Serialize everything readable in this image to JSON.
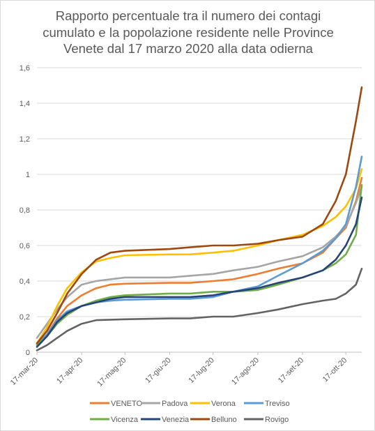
{
  "chart_data": {
    "type": "line",
    "title_lines": [
      "Rapporto percentuale tra il numero dei contagi",
      "cumulato e la popolazione residente nelle  Province",
      "Venete dal 17 marzo 2020 alla data odierna"
    ],
    "y_ticks": [
      "0",
      "0,2",
      "0,4",
      "0,6",
      "0,8",
      "1",
      "1,2",
      "1,4",
      "1,6"
    ],
    "x_ticks": [
      "17-mar-20",
      "17-apr-20",
      "17-mag-20",
      "17-giu-20",
      "17-lug-20",
      "17-ago-20",
      "17-set-20",
      "17-ott-20"
    ],
    "ylim": [
      0,
      1.6
    ],
    "xlim": [
      "2020-03-17",
      "2020-10-28"
    ],
    "grid": true,
    "legend_position": "bottom",
    "series": [
      {
        "name": "VENETO",
        "color": "#ed7d31",
        "points": [
          [
            "2020-03-17",
            0.04
          ],
          [
            "2020-03-24",
            0.1
          ],
          [
            "2020-03-31",
            0.19
          ],
          [
            "2020-04-07",
            0.26
          ],
          [
            "2020-04-17",
            0.32
          ],
          [
            "2020-04-27",
            0.36
          ],
          [
            "2020-05-07",
            0.38
          ],
          [
            "2020-05-17",
            0.385
          ],
          [
            "2020-06-17",
            0.39
          ],
          [
            "2020-07-01",
            0.39
          ],
          [
            "2020-07-17",
            0.4
          ],
          [
            "2020-07-31",
            0.41
          ],
          [
            "2020-08-17",
            0.44
          ],
          [
            "2020-08-31",
            0.47
          ],
          [
            "2020-09-17",
            0.5
          ],
          [
            "2020-10-01",
            0.56
          ],
          [
            "2020-10-10",
            0.64
          ],
          [
            "2020-10-17",
            0.7
          ],
          [
            "2020-10-24",
            0.85
          ],
          [
            "2020-10-28",
            0.98
          ]
        ]
      },
      {
        "name": "Padova",
        "color": "#a5a5a5",
        "points": [
          [
            "2020-03-17",
            0.08
          ],
          [
            "2020-03-24",
            0.16
          ],
          [
            "2020-03-31",
            0.24
          ],
          [
            "2020-04-07",
            0.31
          ],
          [
            "2020-04-17",
            0.38
          ],
          [
            "2020-04-27",
            0.4
          ],
          [
            "2020-05-07",
            0.41
          ],
          [
            "2020-05-17",
            0.42
          ],
          [
            "2020-06-17",
            0.42
          ],
          [
            "2020-07-01",
            0.43
          ],
          [
            "2020-07-17",
            0.44
          ],
          [
            "2020-07-31",
            0.46
          ],
          [
            "2020-08-17",
            0.48
          ],
          [
            "2020-08-31",
            0.51
          ],
          [
            "2020-09-17",
            0.54
          ],
          [
            "2020-10-01",
            0.59
          ],
          [
            "2020-10-10",
            0.65
          ],
          [
            "2020-10-17",
            0.71
          ],
          [
            "2020-10-24",
            0.84
          ],
          [
            "2020-10-28",
            0.93
          ]
        ]
      },
      {
        "name": "Verona",
        "color": "#ffc000",
        "points": [
          [
            "2020-03-17",
            0.05
          ],
          [
            "2020-03-24",
            0.14
          ],
          [
            "2020-03-31",
            0.26
          ],
          [
            "2020-04-07",
            0.36
          ],
          [
            "2020-04-17",
            0.45
          ],
          [
            "2020-04-27",
            0.51
          ],
          [
            "2020-05-07",
            0.53
          ],
          [
            "2020-05-17",
            0.545
          ],
          [
            "2020-06-17",
            0.55
          ],
          [
            "2020-07-01",
            0.55
          ],
          [
            "2020-07-17",
            0.56
          ],
          [
            "2020-07-31",
            0.57
          ],
          [
            "2020-08-17",
            0.6
          ],
          [
            "2020-08-31",
            0.63
          ],
          [
            "2020-09-17",
            0.66
          ],
          [
            "2020-10-01",
            0.71
          ],
          [
            "2020-10-10",
            0.76
          ],
          [
            "2020-10-17",
            0.82
          ],
          [
            "2020-10-24",
            0.92
          ],
          [
            "2020-10-28",
            1.03
          ]
        ]
      },
      {
        "name": "Treviso",
        "color": "#5b9bd5",
        "points": [
          [
            "2020-03-17",
            0.04
          ],
          [
            "2020-03-24",
            0.1
          ],
          [
            "2020-03-31",
            0.18
          ],
          [
            "2020-04-07",
            0.23
          ],
          [
            "2020-04-17",
            0.26
          ],
          [
            "2020-04-27",
            0.28
          ],
          [
            "2020-05-07",
            0.29
          ],
          [
            "2020-05-17",
            0.295
          ],
          [
            "2020-06-17",
            0.3
          ],
          [
            "2020-07-01",
            0.3
          ],
          [
            "2020-07-17",
            0.31
          ],
          [
            "2020-07-31",
            0.34
          ],
          [
            "2020-08-17",
            0.37
          ],
          [
            "2020-08-31",
            0.43
          ],
          [
            "2020-09-17",
            0.5
          ],
          [
            "2020-10-01",
            0.57
          ],
          [
            "2020-10-10",
            0.64
          ],
          [
            "2020-10-17",
            0.72
          ],
          [
            "2020-10-24",
            0.93
          ],
          [
            "2020-10-28",
            1.1
          ]
        ]
      },
      {
        "name": "Vicenza",
        "color": "#70ad47",
        "points": [
          [
            "2020-03-17",
            0.04
          ],
          [
            "2020-03-24",
            0.09
          ],
          [
            "2020-03-31",
            0.16
          ],
          [
            "2020-04-07",
            0.21
          ],
          [
            "2020-04-17",
            0.26
          ],
          [
            "2020-04-27",
            0.29
          ],
          [
            "2020-05-07",
            0.31
          ],
          [
            "2020-05-17",
            0.32
          ],
          [
            "2020-06-17",
            0.33
          ],
          [
            "2020-07-01",
            0.33
          ],
          [
            "2020-07-17",
            0.34
          ],
          [
            "2020-07-31",
            0.34
          ],
          [
            "2020-08-17",
            0.35
          ],
          [
            "2020-08-31",
            0.38
          ],
          [
            "2020-09-17",
            0.42
          ],
          [
            "2020-10-01",
            0.46
          ],
          [
            "2020-10-10",
            0.5
          ],
          [
            "2020-10-17",
            0.55
          ],
          [
            "2020-10-24",
            0.66
          ],
          [
            "2020-10-28",
            0.94
          ]
        ]
      },
      {
        "name": "Venezia",
        "color": "#264478",
        "points": [
          [
            "2020-03-17",
            0.03
          ],
          [
            "2020-03-24",
            0.09
          ],
          [
            "2020-03-31",
            0.17
          ],
          [
            "2020-04-07",
            0.22
          ],
          [
            "2020-04-17",
            0.26
          ],
          [
            "2020-04-27",
            0.28
          ],
          [
            "2020-05-07",
            0.3
          ],
          [
            "2020-05-17",
            0.31
          ],
          [
            "2020-06-17",
            0.31
          ],
          [
            "2020-07-01",
            0.31
          ],
          [
            "2020-07-17",
            0.32
          ],
          [
            "2020-07-31",
            0.34
          ],
          [
            "2020-08-17",
            0.36
          ],
          [
            "2020-08-31",
            0.39
          ],
          [
            "2020-09-17",
            0.42
          ],
          [
            "2020-10-01",
            0.46
          ],
          [
            "2020-10-10",
            0.52
          ],
          [
            "2020-10-17",
            0.6
          ],
          [
            "2020-10-24",
            0.72
          ],
          [
            "2020-10-28",
            0.87
          ]
        ]
      },
      {
        "name": "Belluno",
        "color": "#9e480e",
        "points": [
          [
            "2020-03-17",
            0.05
          ],
          [
            "2020-03-24",
            0.12
          ],
          [
            "2020-03-31",
            0.22
          ],
          [
            "2020-04-07",
            0.33
          ],
          [
            "2020-04-17",
            0.44
          ],
          [
            "2020-04-27",
            0.52
          ],
          [
            "2020-05-07",
            0.56
          ],
          [
            "2020-05-17",
            0.57
          ],
          [
            "2020-06-17",
            0.58
          ],
          [
            "2020-07-01",
            0.59
          ],
          [
            "2020-07-17",
            0.6
          ],
          [
            "2020-07-31",
            0.6
          ],
          [
            "2020-08-17",
            0.61
          ],
          [
            "2020-08-31",
            0.63
          ],
          [
            "2020-09-17",
            0.65
          ],
          [
            "2020-10-01",
            0.72
          ],
          [
            "2020-10-10",
            0.85
          ],
          [
            "2020-10-17",
            1.0
          ],
          [
            "2020-10-24",
            1.3
          ],
          [
            "2020-10-28",
            1.49
          ]
        ]
      },
      {
        "name": "Rovigo",
        "color": "#636363",
        "points": [
          [
            "2020-03-17",
            0.01
          ],
          [
            "2020-03-24",
            0.04
          ],
          [
            "2020-03-31",
            0.08
          ],
          [
            "2020-04-07",
            0.12
          ],
          [
            "2020-04-17",
            0.16
          ],
          [
            "2020-04-27",
            0.18
          ],
          [
            "2020-05-17",
            0.185
          ],
          [
            "2020-06-17",
            0.19
          ],
          [
            "2020-07-01",
            0.19
          ],
          [
            "2020-07-17",
            0.2
          ],
          [
            "2020-07-31",
            0.2
          ],
          [
            "2020-08-17",
            0.22
          ],
          [
            "2020-08-31",
            0.24
          ],
          [
            "2020-09-17",
            0.27
          ],
          [
            "2020-10-01",
            0.29
          ],
          [
            "2020-10-10",
            0.3
          ],
          [
            "2020-10-17",
            0.33
          ],
          [
            "2020-10-24",
            0.38
          ],
          [
            "2020-10-28",
            0.47
          ]
        ]
      }
    ]
  }
}
